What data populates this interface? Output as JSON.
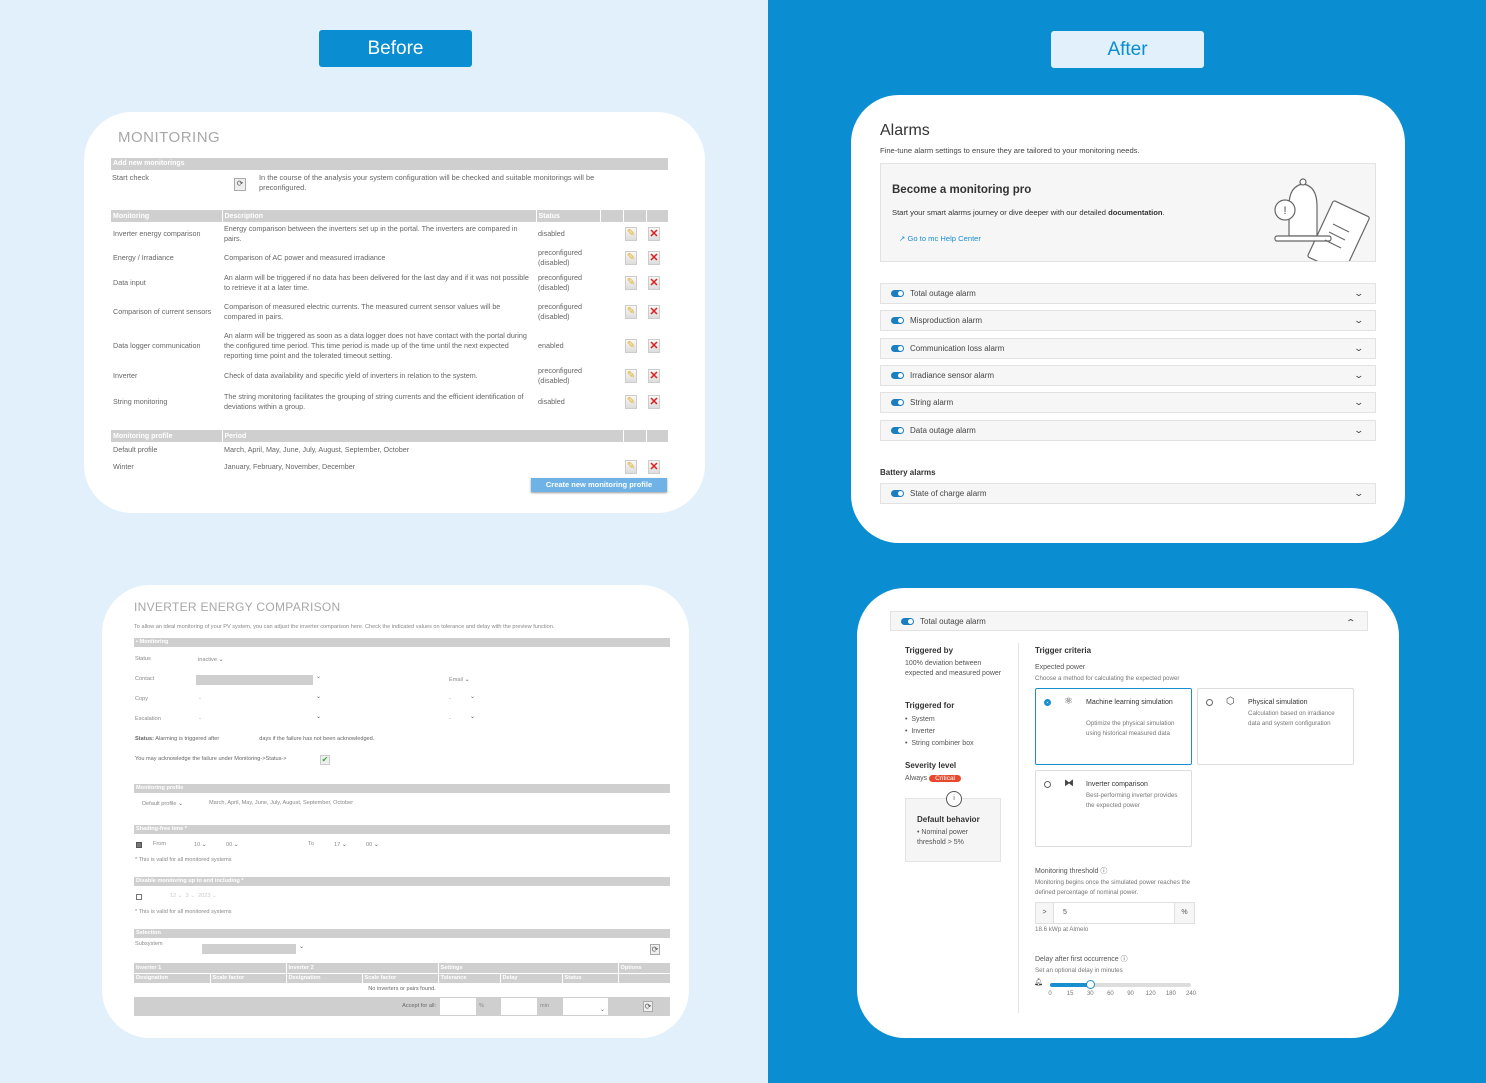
{
  "labels": {
    "before": "Before",
    "after": "After"
  },
  "colors": {
    "left_bg": "#e1f0fa",
    "right_bg": "#0a8ed1",
    "accent": "#1a8fd0",
    "critical": "#e8482c"
  },
  "before": {
    "monitoring": {
      "title": "MONITORING",
      "add_header": "Add new monitorings",
      "start_check_label": "Start check",
      "start_check_desc": "In the course of the analysis your system configuration will be checked and suitable monitorings will be preconfigured.",
      "columns": [
        "Monitoring",
        "Description",
        "Status"
      ],
      "rows": [
        {
          "name": "Inverter energy comparison",
          "desc": "Energy comparison between the inverters set up in the portal. The inverters are compared in pairs.",
          "status": "disabled"
        },
        {
          "name": "Energy / Irradiance",
          "desc": "Comparison of AC power and measured irradiance",
          "status": "preconfigured (disabled)"
        },
        {
          "name": "Data input",
          "desc": "An alarm will be triggered if no data has been delivered for the last day and if it was not possible to retrieve it at a later time.",
          "status": "preconfigured (disabled)"
        },
        {
          "name": "Comparison of current sensors",
          "desc": "Comparison of measured electric currents. The measured current sensor values will be compared in pairs.",
          "status": "preconfigured (disabled)"
        },
        {
          "name": "Data logger communication",
          "desc": "An alarm will be triggered as soon as a data logger does not have contact with the portal during the configured time period. This time period is made up of the time until the next expected reporting time point and the tolerated timeout setting.",
          "status": "enabled"
        },
        {
          "name": "Inverter",
          "desc": "Check of data availability and specific yield of inverters in relation to the system.",
          "status": "preconfigured (disabled)"
        },
        {
          "name": "String monitoring",
          "desc": "The string monitoring facilitates the grouping of string currents and the efficient identification of deviations within a group.",
          "status": "disabled"
        }
      ],
      "profile_columns": [
        "Monitoring profile",
        "Period"
      ],
      "profiles": [
        {
          "name": "Default profile",
          "period": "March, April, May, June, July, August, September, October"
        },
        {
          "name": "Winter",
          "period": "January, February, November, December"
        }
      ],
      "create_profile": "Create new monitoring profile"
    },
    "inverter": {
      "title": "INVERTER ENERGY COMPARISON",
      "desc": "To allow an ideal monitoring of your PV system, you can adjust the inverter comparison here. Check the indicated values on tolerance and delay with the preview function.",
      "monitoring_header": "Monitoring",
      "status_label": "Status",
      "status_value": "inactive",
      "contact_label": "Contact",
      "contact_channel": "Email",
      "copy_label": "Copy",
      "copy_value": "-",
      "copy_channel": "-",
      "escalation_label": "Escalation",
      "escalation_value": "-",
      "escalation_channel": "-",
      "status_note_bold": "Status:",
      "status_note_a": "Alarming is triggered after",
      "status_note_b": "days if the failure has not been acknowledged.",
      "ack_note": "You may acknowledge the failure under Monitoring->Status->",
      "profile_header": "Monitoring profile",
      "profile_value": "Default profile",
      "profile_period": "March, April, May, June, July, August, September, October",
      "shading_header": "Shading-free time *",
      "from_label": "From",
      "from_h": "10",
      "from_m": "00",
      "to_label": "To",
      "to_h": "17",
      "to_m": "00",
      "valid_note": "* This is valid for all monitored systems",
      "disable_header": "Disable monitoring up to and including *",
      "disable_d": "12",
      "disable_mo": "3",
      "disable_y": "2023",
      "selection_header": "Selection",
      "subsystem_label": "Subsystem",
      "group_headers": [
        "Inverter 1",
        "Inverter 2",
        "Settings",
        "Options"
      ],
      "sub_headers": [
        "Designation",
        "Scale factor",
        "Designation",
        "Scale factor",
        "Tolerance",
        "Delay",
        "Status"
      ],
      "empty_text": "No inverters or pairs found.",
      "accept_label": "Accept for all:",
      "unit_percent": "%",
      "unit_min": "min"
    }
  },
  "after": {
    "alarms": {
      "title": "Alarms",
      "subtitle": "Fine-tune alarm settings to ensure they are tailored to your monitoring needs.",
      "promo_title": "Become a monitoring pro",
      "promo_text": "Start your smart alarms journey or dive deeper with our detailed ",
      "promo_bold": "documentation",
      "promo_end": ".",
      "promo_link": "Go to mc Help Center",
      "items": [
        {
          "label": "Total outage alarm",
          "enabled": true
        },
        {
          "label": "Misproduction alarm",
          "enabled": true
        },
        {
          "label": "Communication loss alarm",
          "enabled": true
        },
        {
          "label": "Irradiance sensor alarm",
          "enabled": true
        },
        {
          "label": "String alarm",
          "enabled": true
        },
        {
          "label": "Data outage alarm",
          "enabled": true
        }
      ],
      "battery_heading": "Battery alarms",
      "battery_items": [
        {
          "label": "State of charge alarm",
          "enabled": true
        }
      ]
    },
    "detail": {
      "header": "Total outage alarm",
      "triggered_by_h": "Triggered by",
      "triggered_by": "100% deviation between expected and measured power",
      "triggered_for_h": "Triggered for",
      "triggered_for": [
        "System",
        "Inverter",
        "String combiner box"
      ],
      "severity_h": "Severity level",
      "severity_prefix": "Always",
      "severity": "Critical",
      "default_h": "Default behavior",
      "default_items": [
        "Nominal power threshold > 5%"
      ],
      "criteria_h": "Trigger criteria",
      "expected_h": "Expected power",
      "expected_sub": "Choose a method for calculating the expected power",
      "options": [
        {
          "title": "Machine learning simulation",
          "desc": "Optimize the physical simulation using historical measured data",
          "selected": true,
          "icon": "atom-icon"
        },
        {
          "title": "Physical simulation",
          "desc": "Calculation based on irradiance data and system configuration",
          "selected": false,
          "icon": "cube-icon"
        },
        {
          "title": "Inverter comparison",
          "desc": "Best-performing inverter provides the expected power",
          "selected": false,
          "icon": "inverter-compare-icon"
        }
      ],
      "threshold_h": "Monitoring threshold",
      "threshold_sub": "Monitoring begins once the simulated power reaches the defined percentage of nominal power.",
      "threshold_prefix": ">",
      "threshold_value": "5",
      "threshold_unit": "%",
      "threshold_note": "18.6 kWp at Almelo",
      "delay_h": "Delay after first occurrence",
      "delay_sub": "Set an optional delay in minutes",
      "delay_ticks": [
        "0",
        "15",
        "30",
        "60",
        "90",
        "120",
        "180",
        "240"
      ],
      "delay_value": 30
    }
  }
}
